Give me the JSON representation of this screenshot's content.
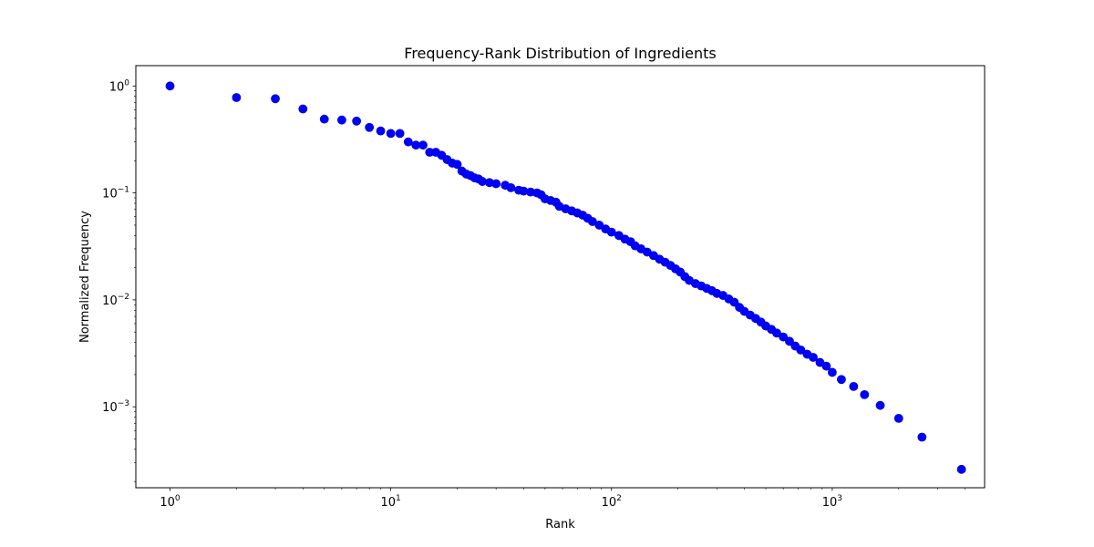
{
  "chart_data": {
    "type": "scatter",
    "title": "Frequency-Rank Distribution of Ingredients",
    "xlabel": "Rank",
    "ylabel": "Normalized Frequency",
    "x_scale": "log",
    "y_scale": "log",
    "xlim": [
      0.7,
      4900
    ],
    "ylim": [
      0.000175,
      1.55
    ],
    "x_ticks": [
      {
        "value": 1,
        "base": "10",
        "exp": "0"
      },
      {
        "value": 10,
        "base": "10",
        "exp": "1"
      },
      {
        "value": 100,
        "base": "10",
        "exp": "2"
      },
      {
        "value": 1000,
        "base": "10",
        "exp": "3"
      }
    ],
    "y_ticks": [
      {
        "value": 0.001,
        "base": "10",
        "exp": "−3"
      },
      {
        "value": 0.01,
        "base": "10",
        "exp": "−2"
      },
      {
        "value": 0.1,
        "base": "10",
        "exp": "−1"
      },
      {
        "value": 1,
        "base": "10",
        "exp": "0"
      }
    ],
    "grid": false,
    "marker_color": "#0000ff",
    "marker_edge_color": "#0000cc",
    "points": [
      [
        1,
        1.0
      ],
      [
        2,
        0.78
      ],
      [
        3,
        0.76
      ],
      [
        4,
        0.61
      ],
      [
        5,
        0.49
      ],
      [
        6,
        0.48
      ],
      [
        7,
        0.47
      ],
      [
        8,
        0.41
      ],
      [
        9,
        0.38
      ],
      [
        10,
        0.36
      ],
      [
        11,
        0.36
      ],
      [
        12,
        0.3
      ],
      [
        13,
        0.28
      ],
      [
        14,
        0.28
      ],
      [
        15,
        0.24
      ],
      [
        16,
        0.24
      ],
      [
        17,
        0.225
      ],
      [
        18,
        0.205
      ],
      [
        19,
        0.19
      ],
      [
        20,
        0.185
      ],
      [
        21,
        0.16
      ],
      [
        22,
        0.15
      ],
      [
        23,
        0.145
      ],
      [
        24,
        0.138
      ],
      [
        25,
        0.135
      ],
      [
        26,
        0.128
      ],
      [
        28,
        0.125
      ],
      [
        30,
        0.122
      ],
      [
        33,
        0.118
      ],
      [
        35,
        0.112
      ],
      [
        38,
        0.106
      ],
      [
        40,
        0.104
      ],
      [
        43,
        0.102
      ],
      [
        46,
        0.1
      ],
      [
        48,
        0.096
      ],
      [
        50,
        0.088
      ],
      [
        53,
        0.085
      ],
      [
        56,
        0.082
      ],
      [
        58,
        0.075
      ],
      [
        62,
        0.071
      ],
      [
        66,
        0.068
      ],
      [
        70,
        0.065
      ],
      [
        74,
        0.062
      ],
      [
        78,
        0.058
      ],
      [
        82,
        0.054
      ],
      [
        88,
        0.05
      ],
      [
        94,
        0.046
      ],
      [
        100,
        0.043
      ],
      [
        108,
        0.04
      ],
      [
        115,
        0.037
      ],
      [
        122,
        0.035
      ],
      [
        128,
        0.032
      ],
      [
        136,
        0.03
      ],
      [
        145,
        0.028
      ],
      [
        155,
        0.026
      ],
      [
        165,
        0.024
      ],
      [
        175,
        0.0225
      ],
      [
        185,
        0.021
      ],
      [
        195,
        0.0195
      ],
      [
        205,
        0.0182
      ],
      [
        215,
        0.0165
      ],
      [
        225,
        0.0152
      ],
      [
        240,
        0.0142
      ],
      [
        255,
        0.0135
      ],
      [
        270,
        0.0128
      ],
      [
        285,
        0.0122
      ],
      [
        300,
        0.0115
      ],
      [
        320,
        0.011
      ],
      [
        340,
        0.0102
      ],
      [
        360,
        0.0095
      ],
      [
        380,
        0.0085
      ],
      [
        400,
        0.0078
      ],
      [
        425,
        0.0072
      ],
      [
        450,
        0.0067
      ],
      [
        475,
        0.0062
      ],
      [
        500,
        0.0057
      ],
      [
        530,
        0.0053
      ],
      [
        560,
        0.0049
      ],
      [
        600,
        0.0045
      ],
      [
        640,
        0.0041
      ],
      [
        680,
        0.0037
      ],
      [
        720,
        0.0034
      ],
      [
        770,
        0.0031
      ],
      [
        820,
        0.0029
      ],
      [
        880,
        0.0026
      ],
      [
        940,
        0.0024
      ],
      [
        1000,
        0.0021
      ],
      [
        1100,
        0.0018
      ],
      [
        1250,
        0.00155
      ],
      [
        1400,
        0.0013
      ],
      [
        1650,
        0.00103
      ],
      [
        2000,
        0.00078
      ],
      [
        2550,
        0.00052
      ],
      [
        3850,
        0.00026
      ]
    ]
  }
}
